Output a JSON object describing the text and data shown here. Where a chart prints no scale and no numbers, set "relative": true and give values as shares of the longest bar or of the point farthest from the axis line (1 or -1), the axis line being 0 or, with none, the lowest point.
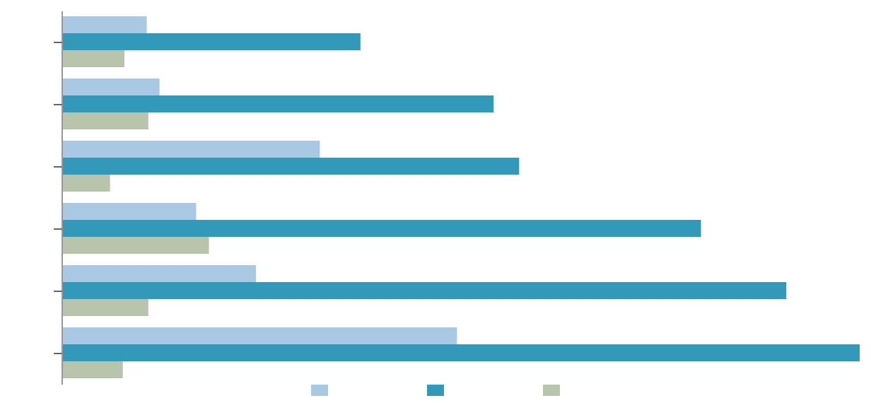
{
  "chart_data": {
    "type": "bar",
    "orientation": "horizontal",
    "relative": true,
    "categories": [
      null,
      null,
      null,
      null,
      null,
      null
    ],
    "series": [
      {
        "color": "#a8c8e4",
        "values": [
          0.106,
          0.122,
          0.323,
          0.168,
          0.243,
          0.495
        ]
      },
      {
        "color": "#3399bb",
        "values": [
          0.374,
          0.541,
          0.573,
          0.801,
          0.908,
          1
        ]
      },
      {
        "color": "#b9c4ad",
        "values": [
          0.078,
          0.108,
          0.06,
          0.184,
          0.108,
          0.076
        ]
      }
    ],
    "grid": false
  }
}
